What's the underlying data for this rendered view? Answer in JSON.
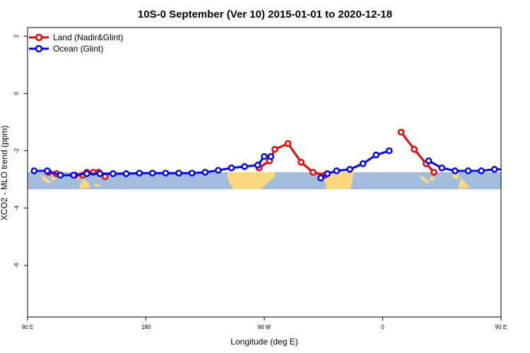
{
  "chart_data": {
    "type": "line",
    "title": "10S-0 September (Ver 10)   2015-01-01 to 2020-12-18",
    "xlabel": "Longitude (deg E)",
    "ylabel": "XCO2 - MLO trend (ppm)",
    "xlim": [
      90,
      450
    ],
    "ylim": [
      -7.8,
      2.3
    ],
    "grid": false,
    "legend_position": "top-left",
    "x_ticks": [
      {
        "value": 90,
        "label": "90 E"
      },
      {
        "value": 180,
        "label": "180"
      },
      {
        "value": 270,
        "label": "90 W"
      },
      {
        "value": 360,
        "label": "0"
      },
      {
        "value": 450,
        "label": "90 E"
      },
      {
        "value": 540,
        "label": "180"
      }
    ],
    "y_ticks": [
      {
        "value": 2,
        "label": "2"
      },
      {
        "value": 0,
        "label": "0"
      },
      {
        "value": -2,
        "label": "-2"
      },
      {
        "value": -4,
        "label": "-4"
      },
      {
        "value": -6,
        "label": "-6"
      }
    ],
    "map_band": {
      "lat_range": [
        -10,
        0
      ],
      "ocean_color": "#a4bcdc",
      "land_color": "#f9d77e"
    },
    "series": [
      {
        "name": "Land (Nadir&Glint)",
        "color": "#ee0000",
        "segments": [
          {
            "x": [
              106,
              112
            ],
            "y": [
              -2.75,
              -2.8
            ]
          },
          {
            "x": [
              126,
              132
            ],
            "y": [
              -2.85,
              -2.85
            ]
          },
          {
            "x": [
              135,
              140,
              144,
              149
            ],
            "y": [
              -2.75,
              -2.75,
              -2.75,
              -2.9
            ]
          },
          {
            "x": [
              266,
              274,
              278,
              288,
              298,
              307,
              316
            ],
            "y": [
              -2.6,
              -2.35,
              -1.95,
              -1.75,
              -2.4,
              -2.75,
              -2.85
            ]
          },
          {
            "x": [
              374,
              384,
              393,
              399
            ],
            "y": [
              -1.35,
              -1.95,
              -2.45,
              -2.75
            ]
          },
          {
            "x": [
              483,
              489
            ],
            "y": [
              -2.75,
              -2.8
            ]
          },
          {
            "x": [
              502,
              507,
              512,
              517
            ],
            "y": [
              -2.75,
              -2.75,
              -2.75,
              -2.9
            ]
          }
        ]
      },
      {
        "name": "Ocean (Glint)",
        "color": "#0000ee",
        "segments": [
          {
            "x": [
              95,
              105,
              115,
              125,
              135,
              145,
              155,
              165,
              175,
              185,
              195,
              205,
              215,
              225,
              235,
              245,
              255,
              265,
              270,
              275
            ],
            "y": [
              -2.7,
              -2.7,
              -2.85,
              -2.85,
              -2.8,
              -2.8,
              -2.8,
              -2.8,
              -2.78,
              -2.78,
              -2.78,
              -2.78,
              -2.78,
              -2.75,
              -2.68,
              -2.6,
              -2.55,
              -2.5,
              -2.2,
              -2.2
            ]
          },
          {
            "x": [
              313,
              318,
              325,
              335,
              345,
              355,
              365
            ],
            "y": [
              -2.95,
              -2.8,
              -2.7,
              -2.65,
              -2.45,
              -2.15,
              -2.0
            ]
          },
          {
            "x": [
              395,
              405,
              415,
              425,
              435,
              445,
              455,
              465,
              475,
              485,
              495,
              505,
              515,
              525,
              535,
              545
            ],
            "y": [
              -2.35,
              -2.6,
              -2.7,
              -2.7,
              -2.7,
              -2.65,
              -2.65,
              -2.7,
              -2.7,
              -2.8,
              -2.85,
              -2.8,
              -2.8,
              -2.75,
              -2.75,
              -2.75
            ]
          }
        ]
      }
    ]
  }
}
